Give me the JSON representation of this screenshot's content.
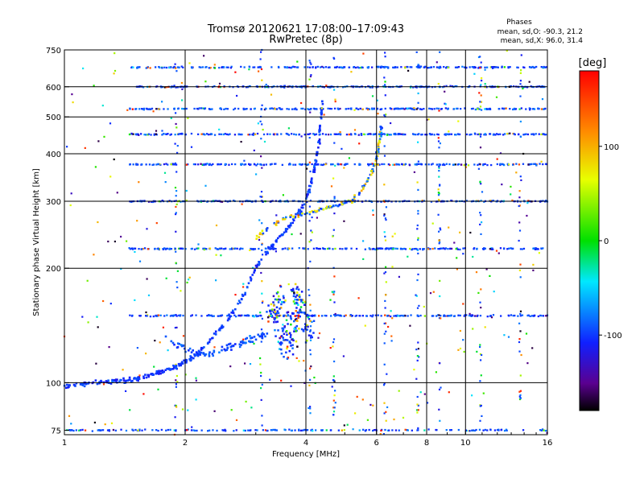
{
  "chart_data": {
    "type": "scatter",
    "title": "Tromsø 20120621 17:08:00–17:09:43",
    "subtitle": "RwPretec (8p)",
    "phases": {
      "heading": "Phases",
      "line_o": "mean, sd,O: -90.3, 21.2",
      "line_x": "mean, sd,X:  96.0, 31.4"
    },
    "xlabel": "Frequency [MHz]",
    "ylabel": "Stationary phase Virtual Height [km]",
    "x_scale": "log",
    "y_scale": "log",
    "xlim": [
      1,
      16
    ],
    "ylim": [
      73,
      750
    ],
    "x_ticks": [
      1,
      2,
      4,
      6,
      8,
      10,
      16
    ],
    "x_tick_labels": [
      "1",
      "2",
      "4",
      "6",
      "8",
      "10",
      "16"
    ],
    "y_ticks": [
      75,
      100,
      200,
      300,
      400,
      500,
      600,
      750
    ],
    "y_tick_labels": [
      "75",
      "100",
      "200",
      "300",
      "400",
      "500",
      "600",
      "750"
    ],
    "grid": true,
    "colorbar": {
      "label": "[deg]",
      "ticks": [
        100,
        0,
        -100
      ],
      "tick_labels": [
        "100",
        "0",
        "-100"
      ],
      "range": [
        -180,
        180
      ]
    },
    "o_trace": [
      [
        1.0,
        98
      ],
      [
        1.1,
        99
      ],
      [
        1.2,
        100
      ],
      [
        1.3,
        101
      ],
      [
        1.4,
        101
      ],
      [
        1.5,
        102
      ],
      [
        1.6,
        104
      ],
      [
        1.7,
        106
      ],
      [
        1.8,
        108
      ],
      [
        1.9,
        110
      ],
      [
        2.0,
        113
      ],
      [
        2.1,
        117
      ],
      [
        2.2,
        122
      ],
      [
        2.4,
        135
      ],
      [
        2.6,
        150
      ],
      [
        2.8,
        170
      ],
      [
        3.0,
        200
      ],
      [
        3.2,
        220
      ],
      [
        3.4,
        238
      ],
      [
        3.6,
        255
      ],
      [
        3.8,
        275
      ],
      [
        4.0,
        300
      ],
      [
        4.1,
        330
      ],
      [
        4.2,
        370
      ],
      [
        4.3,
        420
      ],
      [
        4.35,
        480
      ],
      [
        4.4,
        560
      ]
    ],
    "x_trace": [
      [
        3.0,
        240
      ],
      [
        3.3,
        260
      ],
      [
        3.6,
        272
      ],
      [
        4.0,
        280
      ],
      [
        4.4,
        287
      ],
      [
        4.8,
        293
      ],
      [
        5.2,
        300
      ],
      [
        5.5,
        320
      ],
      [
        5.8,
        350
      ],
      [
        6.0,
        390
      ],
      [
        6.1,
        430
      ],
      [
        6.2,
        480
      ]
    ],
    "lower_trace": [
      [
        1.8,
        130
      ],
      [
        2.0,
        123
      ],
      [
        2.2,
        119
      ],
      [
        2.4,
        120
      ],
      [
        2.6,
        124
      ],
      [
        2.8,
        128
      ],
      [
        3.0,
        131
      ],
      [
        3.2,
        134
      ]
    ],
    "scatter_cloud": [
      [
        3.3,
        150
      ],
      [
        3.5,
        135
      ],
      [
        3.7,
        145
      ],
      [
        3.9,
        160
      ],
      [
        4.0,
        140
      ],
      [
        3.6,
        125
      ],
      [
        3.8,
        170
      ],
      [
        3.4,
        165
      ]
    ],
    "artifact_height_bands_km": [
      75,
      150,
      225,
      300,
      375,
      450,
      525,
      600,
      675
    ],
    "band_phase_mean_deg": -95,
    "vertical_interference_mhz": [
      1.9,
      3.1,
      4.1,
      4.7,
      6.3,
      7.6,
      8.6,
      10.9,
      13.7
    ]
  }
}
